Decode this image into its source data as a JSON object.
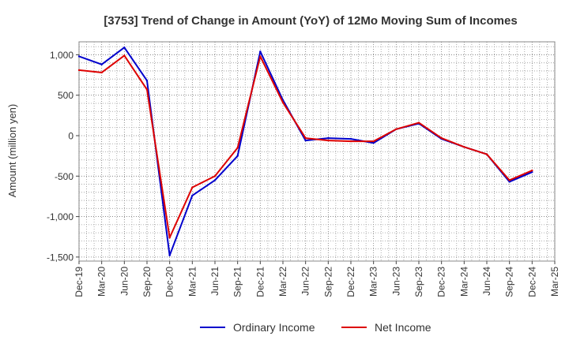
{
  "chart_data": {
    "type": "line",
    "title": "[3753]  Trend of Change in Amount (YoY) of 12Mo Moving Sum of Incomes",
    "xlabel": "",
    "ylabel": "Amount (million yen)",
    "ylim": [
      -1550,
      1160
    ],
    "yticks": [
      1000,
      500,
      0,
      -500,
      -1000,
      -1500
    ],
    "ytick_labels": [
      "1,000",
      "500",
      "0",
      "-500",
      "-1,000",
      "-1,500"
    ],
    "x": [
      "Dec-19",
      "Mar-20",
      "Jun-20",
      "Sep-20",
      "Dec-20",
      "Mar-21",
      "Jun-21",
      "Sep-21",
      "Dec-21",
      "Mar-22",
      "Jun-22",
      "Sep-22",
      "Dec-22",
      "Mar-23",
      "Jun-23",
      "Sep-23",
      "Dec-23",
      "Mar-24",
      "Jun-24",
      "Sep-24",
      "Dec-24",
      "Mar-25"
    ],
    "grid": true,
    "legend_position": "bottom",
    "series": [
      {
        "name": "Ordinary Income",
        "color": "#0000cc",
        "values": [
          980,
          880,
          1090,
          680,
          -1480,
          -740,
          -550,
          -250,
          1040,
          440,
          -60,
          -30,
          -40,
          -90,
          80,
          150,
          -40,
          -140,
          -230,
          -570,
          -450,
          null
        ]
      },
      {
        "name": "Net Income",
        "color": "#dd0000",
        "values": [
          810,
          780,
          990,
          570,
          -1260,
          -640,
          -500,
          -150,
          980,
          410,
          -30,
          -60,
          -70,
          -70,
          80,
          160,
          -30,
          -140,
          -230,
          -550,
          -430,
          null
        ]
      }
    ]
  }
}
